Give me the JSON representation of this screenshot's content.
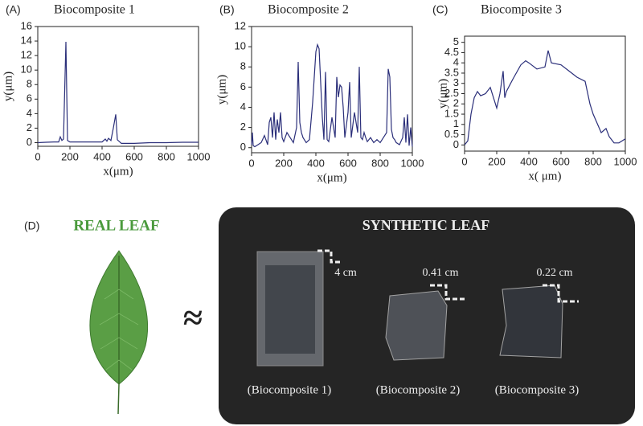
{
  "chart_data": [
    {
      "type": "line",
      "label": "(A)",
      "title": "Biocomposite 1",
      "x_label": "x(μm)",
      "y_label": "y(μm)",
      "color": "#2b2f7a",
      "x": [
        0,
        50,
        100,
        130,
        140,
        150,
        160,
        175,
        185,
        200,
        300,
        400,
        420,
        430,
        440,
        455,
        470,
        485,
        495,
        520,
        600,
        700,
        800,
        900,
        1000
      ],
      "values": [
        0,
        0.05,
        0.1,
        0.1,
        0.8,
        0.3,
        0.5,
        13.9,
        0.3,
        0.1,
        0.1,
        0.1,
        0.5,
        0.2,
        0.6,
        0.3,
        2,
        3.9,
        0.4,
        -0.1,
        -0.1,
        0,
        0,
        0.05,
        0.05
      ],
      "xlim": [
        0,
        1000
      ],
      "xticks": [
        0,
        200,
        400,
        600,
        800,
        1000
      ],
      "ylim": [
        -0.5,
        16
      ],
      "yticks": [
        0,
        2,
        4,
        6,
        8,
        10,
        12,
        14,
        16
      ]
    },
    {
      "type": "line",
      "label": "(B)",
      "title": "Biocomposite 2",
      "x_label": "x(μm)",
      "y_label": "y(μm)",
      "color": "#2b2f7a",
      "x": [
        0,
        5,
        10,
        20,
        40,
        60,
        80,
        100,
        110,
        120,
        130,
        140,
        150,
        160,
        170,
        180,
        190,
        200,
        220,
        240,
        260,
        280,
        290,
        300,
        310,
        320,
        340,
        360,
        380,
        400,
        410,
        420,
        440,
        450,
        460,
        470,
        480,
        500,
        520,
        530,
        540,
        550,
        560,
        570,
        580,
        600,
        610,
        620,
        640,
        660,
        670,
        680,
        690,
        700,
        710,
        720,
        740,
        760,
        780,
        800,
        820,
        840,
        850,
        860,
        870,
        880,
        890,
        900,
        920,
        940,
        950,
        960,
        970,
        980,
        990,
        1000
      ],
      "values": [
        0.3,
        1.5,
        0.2,
        0.1,
        0.3,
        0.5,
        1.2,
        0.3,
        2.5,
        3.0,
        1.0,
        3.5,
        0.8,
        2.8,
        1.5,
        3.5,
        1.0,
        0.6,
        1.5,
        1.0,
        0.5,
        2.0,
        8.5,
        2.5,
        1.5,
        1.0,
        0.5,
        0.8,
        4.5,
        9.5,
        10.2,
        9.8,
        3.0,
        0.8,
        7.5,
        0.8,
        0.6,
        3.0,
        1.0,
        7.0,
        5.0,
        6.2,
        6.0,
        4.0,
        1.0,
        3.5,
        6.5,
        1.0,
        3.5,
        1.5,
        8.0,
        1.0,
        0.8,
        1.5,
        1.0,
        0.6,
        1.0,
        0.5,
        0.8,
        0.5,
        1.0,
        1.5,
        7.8,
        7.0,
        1.8,
        1.0,
        0.8,
        0.5,
        0.3,
        1.0,
        3.0,
        0.5,
        3.3,
        0.2,
        2.0,
        0.1
      ],
      "xlim": [
        0,
        1000
      ],
      "xticks": [
        0,
        200,
        400,
        600,
        800,
        1000
      ],
      "ylim": [
        -0.5,
        12
      ],
      "yticks": [
        0,
        2,
        4,
        6,
        8,
        10,
        12
      ]
    },
    {
      "type": "line",
      "label": "(C)",
      "title": "Biocomposite 3",
      "x_label": "x( μm)",
      "y_label": "y(μm)",
      "color": "#2b2f7a",
      "x": [
        0,
        20,
        40,
        60,
        80,
        100,
        130,
        160,
        200,
        220,
        240,
        250,
        260,
        300,
        350,
        380,
        400,
        450,
        500,
        520,
        540,
        600,
        650,
        700,
        750,
        780,
        800,
        850,
        880,
        900,
        930,
        960,
        1000
      ],
      "values": [
        0,
        0.2,
        1.5,
        2.3,
        2.6,
        2.4,
        2.5,
        2.8,
        1.8,
        2.5,
        3.6,
        2.3,
        2.6,
        3.2,
        3.9,
        4.1,
        4.0,
        3.7,
        3.8,
        4.6,
        4.0,
        3.9,
        3.6,
        3.3,
        3.1,
        2.0,
        1.5,
        0.6,
        0.8,
        0.4,
        0.1,
        0.1,
        0.3
      ],
      "xlim": [
        0,
        1000
      ],
      "xticks": [
        0,
        200,
        400,
        600,
        800,
        1000
      ],
      "ylim": [
        -0.3,
        5.3
      ],
      "yticks": [
        0,
        0.5,
        1,
        1.5,
        2,
        2.5,
        3,
        3.5,
        4,
        4.5,
        5
      ]
    }
  ],
  "panel_d": {
    "label": "(D)",
    "real_leaf": "REAL LEAF",
    "approx": "≈",
    "synthetic_leaf": "SYNTHETIC LEAF",
    "scales": [
      "4 cm",
      "0.41 cm",
      "0.22 cm"
    ],
    "samples": [
      "(Biocomposite 1)",
      "(Biocomposite 2)",
      "(Biocomposite 3)"
    ]
  }
}
